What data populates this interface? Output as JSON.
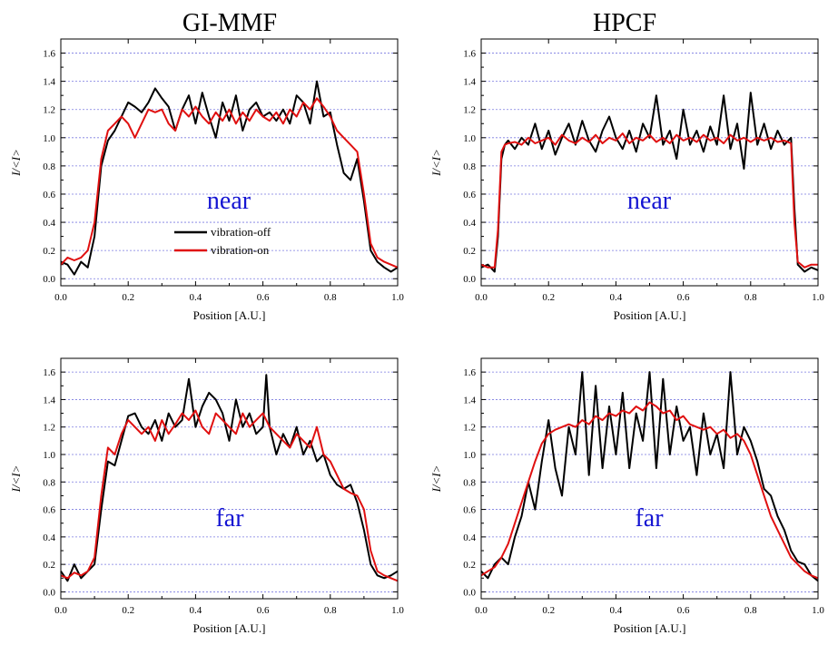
{
  "column_titles": [
    "GI-MMF",
    "HPCF"
  ],
  "chart_data": [
    {
      "type": "line",
      "title": "GI-MMF",
      "xlabel": "Position [A.U.]",
      "ylabel": "I/<I>",
      "xlim": [
        0.0,
        1.0
      ],
      "ylim": [
        -0.05,
        1.7
      ],
      "xticks": [
        "0.0",
        "0.2",
        "0.4",
        "0.6",
        "0.8",
        "1.0"
      ],
      "yticks": [
        "0.0",
        "0.2",
        "0.4",
        "0.6",
        "0.8",
        "1.0",
        "1.2",
        "1.4",
        "1.6"
      ],
      "grid": "horizontal-dashed",
      "annotation": "near",
      "legend": {
        "placement": "center",
        "entries": [
          "vibration-off",
          "vibration-on"
        ]
      },
      "series": [
        {
          "name": "vibration-off",
          "color": "#000000",
          "x": [
            0.0,
            0.02,
            0.04,
            0.06,
            0.08,
            0.1,
            0.12,
            0.14,
            0.16,
            0.18,
            0.2,
            0.22,
            0.24,
            0.26,
            0.28,
            0.3,
            0.32,
            0.34,
            0.36,
            0.38,
            0.4,
            0.42,
            0.44,
            0.46,
            0.48,
            0.5,
            0.52,
            0.54,
            0.56,
            0.58,
            0.6,
            0.62,
            0.64,
            0.66,
            0.68,
            0.7,
            0.72,
            0.74,
            0.76,
            0.78,
            0.8,
            0.82,
            0.84,
            0.86,
            0.88,
            0.9,
            0.92,
            0.94,
            0.96,
            0.98,
            1.0
          ],
          "values": [
            0.12,
            0.1,
            0.03,
            0.12,
            0.08,
            0.3,
            0.8,
            0.98,
            1.05,
            1.15,
            1.25,
            1.22,
            1.18,
            1.25,
            1.35,
            1.28,
            1.22,
            1.05,
            1.2,
            1.3,
            1.1,
            1.32,
            1.15,
            1.0,
            1.25,
            1.12,
            1.3,
            1.05,
            1.2,
            1.25,
            1.15,
            1.18,
            1.12,
            1.2,
            1.1,
            1.3,
            1.25,
            1.1,
            1.4,
            1.15,
            1.18,
            0.95,
            0.75,
            0.7,
            0.85,
            0.55,
            0.2,
            0.12,
            0.08,
            0.05,
            0.08
          ]
        },
        {
          "name": "vibration-on",
          "color": "#e01010",
          "x": [
            0.0,
            0.02,
            0.04,
            0.06,
            0.08,
            0.1,
            0.12,
            0.14,
            0.16,
            0.18,
            0.2,
            0.22,
            0.24,
            0.26,
            0.28,
            0.3,
            0.32,
            0.34,
            0.36,
            0.38,
            0.4,
            0.42,
            0.44,
            0.46,
            0.48,
            0.5,
            0.52,
            0.54,
            0.56,
            0.58,
            0.6,
            0.62,
            0.64,
            0.66,
            0.68,
            0.7,
            0.72,
            0.74,
            0.76,
            0.78,
            0.8,
            0.82,
            0.84,
            0.86,
            0.88,
            0.9,
            0.92,
            0.94,
            0.96,
            0.98,
            1.0
          ],
          "values": [
            0.1,
            0.15,
            0.13,
            0.15,
            0.2,
            0.4,
            0.85,
            1.05,
            1.1,
            1.15,
            1.1,
            1.0,
            1.1,
            1.2,
            1.18,
            1.2,
            1.1,
            1.05,
            1.2,
            1.15,
            1.22,
            1.15,
            1.1,
            1.18,
            1.12,
            1.2,
            1.1,
            1.18,
            1.12,
            1.2,
            1.15,
            1.12,
            1.18,
            1.1,
            1.2,
            1.15,
            1.25,
            1.2,
            1.28,
            1.22,
            1.15,
            1.05,
            1.0,
            0.95,
            0.9,
            0.6,
            0.25,
            0.15,
            0.12,
            0.1,
            0.08
          ]
        }
      ]
    },
    {
      "type": "line",
      "title": "HPCF",
      "xlabel": "Position [A.U.]",
      "ylabel": "I/<I>",
      "xlim": [
        0.0,
        1.0
      ],
      "ylim": [
        -0.05,
        1.7
      ],
      "xticks": [
        "0.0",
        "0.2",
        "0.4",
        "0.6",
        "0.8",
        "1.0"
      ],
      "yticks": [
        "0.0",
        "0.2",
        "0.4",
        "0.6",
        "0.8",
        "1.0",
        "1.2",
        "1.4",
        "1.6"
      ],
      "grid": "horizontal-dashed",
      "annotation": "near",
      "series": [
        {
          "name": "vibration-off",
          "color": "#000000",
          "x": [
            0.0,
            0.02,
            0.04,
            0.05,
            0.06,
            0.07,
            0.08,
            0.1,
            0.12,
            0.14,
            0.16,
            0.18,
            0.2,
            0.22,
            0.24,
            0.26,
            0.28,
            0.3,
            0.32,
            0.34,
            0.36,
            0.38,
            0.4,
            0.42,
            0.44,
            0.46,
            0.48,
            0.5,
            0.52,
            0.54,
            0.56,
            0.58,
            0.6,
            0.62,
            0.64,
            0.66,
            0.68,
            0.7,
            0.72,
            0.74,
            0.76,
            0.78,
            0.8,
            0.82,
            0.84,
            0.86,
            0.88,
            0.9,
            0.92,
            0.93,
            0.94,
            0.96,
            0.98,
            1.0
          ],
          "values": [
            0.08,
            0.1,
            0.05,
            0.3,
            0.85,
            0.95,
            0.98,
            0.92,
            1.0,
            0.95,
            1.1,
            0.92,
            1.05,
            0.88,
            1.0,
            1.1,
            0.95,
            1.12,
            0.98,
            0.9,
            1.05,
            1.15,
            1.0,
            0.92,
            1.05,
            0.9,
            1.1,
            1.0,
            1.3,
            0.95,
            1.05,
            0.85,
            1.2,
            0.95,
            1.05,
            0.9,
            1.08,
            0.95,
            1.3,
            0.92,
            1.1,
            0.78,
            1.32,
            0.95,
            1.1,
            0.92,
            1.05,
            0.95,
            1.0,
            0.5,
            0.1,
            0.05,
            0.08,
            0.06
          ]
        },
        {
          "name": "vibration-on",
          "color": "#e01010",
          "x": [
            0.0,
            0.02,
            0.04,
            0.05,
            0.06,
            0.07,
            0.08,
            0.1,
            0.12,
            0.14,
            0.16,
            0.18,
            0.2,
            0.22,
            0.24,
            0.26,
            0.28,
            0.3,
            0.32,
            0.34,
            0.36,
            0.38,
            0.4,
            0.42,
            0.44,
            0.46,
            0.48,
            0.5,
            0.52,
            0.54,
            0.56,
            0.58,
            0.6,
            0.62,
            0.64,
            0.66,
            0.68,
            0.7,
            0.72,
            0.74,
            0.76,
            0.78,
            0.8,
            0.82,
            0.84,
            0.86,
            0.88,
            0.9,
            0.92,
            0.93,
            0.94,
            0.96,
            0.98,
            1.0
          ],
          "values": [
            0.1,
            0.08,
            0.08,
            0.35,
            0.9,
            0.95,
            0.96,
            0.97,
            0.95,
            1.0,
            0.96,
            0.98,
            1.0,
            0.95,
            1.02,
            0.98,
            0.96,
            1.0,
            0.97,
            1.02,
            0.96,
            1.0,
            0.98,
            1.03,
            0.96,
            1.0,
            0.98,
            1.02,
            0.97,
            1.0,
            0.96,
            1.02,
            0.98,
            1.0,
            0.97,
            1.02,
            0.98,
            1.0,
            0.96,
            1.02,
            0.98,
            1.0,
            0.97,
            1.0,
            0.98,
            1.0,
            0.97,
            0.98,
            0.96,
            0.4,
            0.12,
            0.08,
            0.1,
            0.1
          ]
        }
      ]
    },
    {
      "type": "line",
      "xlabel": "Position [A.U.]",
      "ylabel": "I/<I>",
      "xlim": [
        0.0,
        1.0
      ],
      "ylim": [
        -0.05,
        1.7
      ],
      "xticks": [
        "0.0",
        "0.2",
        "0.4",
        "0.6",
        "0.8",
        "1.0"
      ],
      "yticks": [
        "0.0",
        "0.2",
        "0.4",
        "0.6",
        "0.8",
        "1.0",
        "1.2",
        "1.4",
        "1.6"
      ],
      "grid": "horizontal-dashed",
      "annotation": "far",
      "series": [
        {
          "name": "vibration-off",
          "color": "#000000",
          "x": [
            0.0,
            0.02,
            0.04,
            0.06,
            0.08,
            0.1,
            0.12,
            0.14,
            0.16,
            0.18,
            0.2,
            0.22,
            0.24,
            0.26,
            0.28,
            0.3,
            0.32,
            0.34,
            0.36,
            0.38,
            0.4,
            0.42,
            0.44,
            0.46,
            0.48,
            0.5,
            0.52,
            0.54,
            0.56,
            0.58,
            0.6,
            0.61,
            0.62,
            0.64,
            0.66,
            0.68,
            0.7,
            0.72,
            0.74,
            0.76,
            0.78,
            0.8,
            0.82,
            0.84,
            0.86,
            0.88,
            0.9,
            0.92,
            0.94,
            0.96,
            0.98,
            1.0
          ],
          "values": [
            0.15,
            0.08,
            0.2,
            0.1,
            0.15,
            0.2,
            0.6,
            0.95,
            0.92,
            1.1,
            1.28,
            1.3,
            1.2,
            1.15,
            1.25,
            1.1,
            1.3,
            1.2,
            1.25,
            1.55,
            1.2,
            1.35,
            1.45,
            1.4,
            1.3,
            1.1,
            1.4,
            1.2,
            1.3,
            1.15,
            1.2,
            1.58,
            1.2,
            1.0,
            1.15,
            1.05,
            1.2,
            1.0,
            1.1,
            0.95,
            1.0,
            0.85,
            0.78,
            0.75,
            0.78,
            0.65,
            0.45,
            0.2,
            0.12,
            0.1,
            0.12,
            0.15
          ]
        },
        {
          "name": "vibration-on",
          "color": "#e01010",
          "x": [
            0.0,
            0.02,
            0.04,
            0.06,
            0.08,
            0.1,
            0.12,
            0.14,
            0.16,
            0.18,
            0.2,
            0.22,
            0.24,
            0.26,
            0.28,
            0.3,
            0.32,
            0.34,
            0.36,
            0.38,
            0.4,
            0.42,
            0.44,
            0.46,
            0.48,
            0.5,
            0.52,
            0.54,
            0.56,
            0.58,
            0.6,
            0.62,
            0.64,
            0.66,
            0.68,
            0.7,
            0.72,
            0.74,
            0.76,
            0.78,
            0.8,
            0.82,
            0.84,
            0.86,
            0.88,
            0.9,
            0.92,
            0.94,
            0.96,
            0.98,
            1.0
          ],
          "values": [
            0.12,
            0.1,
            0.14,
            0.12,
            0.15,
            0.25,
            0.7,
            1.05,
            1.0,
            1.15,
            1.25,
            1.2,
            1.15,
            1.2,
            1.1,
            1.25,
            1.15,
            1.22,
            1.3,
            1.25,
            1.32,
            1.2,
            1.15,
            1.3,
            1.25,
            1.2,
            1.15,
            1.3,
            1.2,
            1.25,
            1.3,
            1.2,
            1.15,
            1.1,
            1.05,
            1.15,
            1.1,
            1.05,
            1.2,
            1.0,
            0.95,
            0.85,
            0.75,
            0.72,
            0.7,
            0.6,
            0.3,
            0.15,
            0.12,
            0.1,
            0.08
          ]
        }
      ]
    },
    {
      "type": "line",
      "xlabel": "Position [A.U.]",
      "ylabel": "I/<I>",
      "xlim": [
        0.0,
        1.0
      ],
      "ylim": [
        -0.05,
        1.7
      ],
      "xticks": [
        "0.0",
        "0.2",
        "0.4",
        "0.6",
        "0.8",
        "1.0"
      ],
      "yticks": [
        "0.0",
        "0.2",
        "0.4",
        "0.6",
        "0.8",
        "1.0",
        "1.2",
        "1.4",
        "1.6"
      ],
      "grid": "horizontal-dashed",
      "annotation": "far",
      "series": [
        {
          "name": "vibration-off",
          "color": "#000000",
          "x": [
            0.0,
            0.02,
            0.04,
            0.06,
            0.08,
            0.1,
            0.12,
            0.14,
            0.16,
            0.18,
            0.2,
            0.22,
            0.24,
            0.26,
            0.28,
            0.3,
            0.32,
            0.34,
            0.36,
            0.38,
            0.4,
            0.42,
            0.44,
            0.46,
            0.48,
            0.5,
            0.52,
            0.54,
            0.56,
            0.58,
            0.6,
            0.62,
            0.64,
            0.66,
            0.68,
            0.7,
            0.72,
            0.74,
            0.76,
            0.78,
            0.8,
            0.82,
            0.84,
            0.86,
            0.88,
            0.9,
            0.92,
            0.94,
            0.96,
            0.98,
            1.0
          ],
          "values": [
            0.15,
            0.1,
            0.2,
            0.25,
            0.2,
            0.4,
            0.55,
            0.8,
            0.6,
            0.95,
            1.25,
            0.9,
            0.7,
            1.2,
            1.0,
            1.6,
            0.85,
            1.5,
            0.9,
            1.35,
            1.0,
            1.45,
            0.9,
            1.3,
            1.1,
            1.6,
            0.9,
            1.55,
            1.0,
            1.35,
            1.1,
            1.2,
            0.85,
            1.3,
            1.0,
            1.15,
            0.9,
            1.6,
            1.0,
            1.2,
            1.1,
            0.95,
            0.75,
            0.7,
            0.55,
            0.45,
            0.3,
            0.22,
            0.2,
            0.12,
            0.08
          ]
        },
        {
          "name": "vibration-on",
          "color": "#e01010",
          "x": [
            0.0,
            0.02,
            0.04,
            0.06,
            0.08,
            0.1,
            0.12,
            0.14,
            0.16,
            0.18,
            0.2,
            0.22,
            0.24,
            0.26,
            0.28,
            0.3,
            0.32,
            0.34,
            0.36,
            0.38,
            0.4,
            0.42,
            0.44,
            0.46,
            0.48,
            0.5,
            0.52,
            0.54,
            0.56,
            0.58,
            0.6,
            0.62,
            0.64,
            0.66,
            0.68,
            0.7,
            0.72,
            0.74,
            0.76,
            0.78,
            0.8,
            0.82,
            0.84,
            0.86,
            0.88,
            0.9,
            0.92,
            0.94,
            0.96,
            0.98,
            1.0
          ],
          "values": [
            0.12,
            0.15,
            0.18,
            0.25,
            0.35,
            0.5,
            0.65,
            0.8,
            0.95,
            1.08,
            1.15,
            1.18,
            1.2,
            1.22,
            1.2,
            1.25,
            1.22,
            1.28,
            1.25,
            1.3,
            1.28,
            1.32,
            1.3,
            1.35,
            1.32,
            1.38,
            1.35,
            1.3,
            1.32,
            1.25,
            1.28,
            1.22,
            1.2,
            1.18,
            1.2,
            1.15,
            1.18,
            1.12,
            1.15,
            1.1,
            1.0,
            0.85,
            0.7,
            0.55,
            0.45,
            0.35,
            0.25,
            0.2,
            0.15,
            0.12,
            0.1
          ]
        }
      ]
    }
  ],
  "colors": {
    "grid": "#7a7ae0",
    "annotation": "#1414d2",
    "axes": "#000000"
  }
}
